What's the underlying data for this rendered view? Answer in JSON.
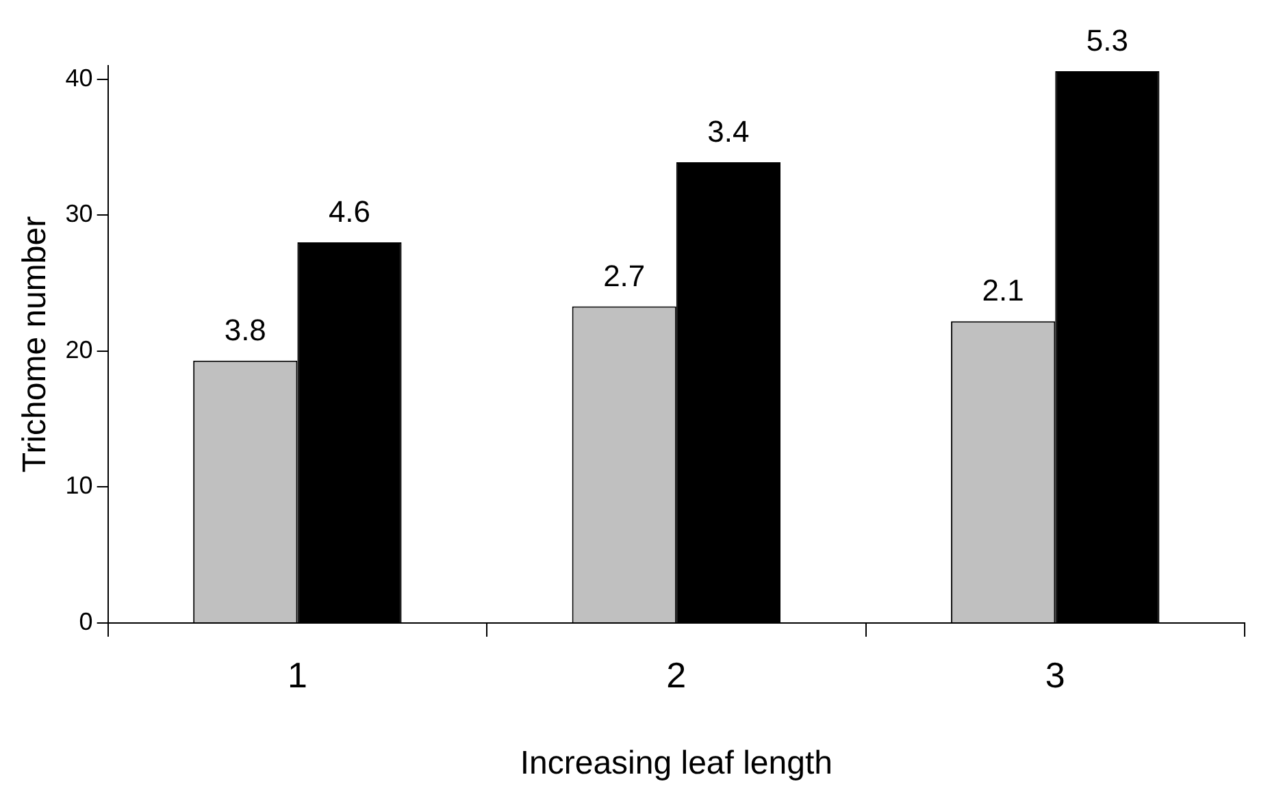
{
  "chart_data": {
    "type": "bar",
    "xlabel": "Increasing leaf length",
    "ylabel": "Trichome number",
    "categories": [
      "1",
      "2",
      "3"
    ],
    "series": [
      {
        "color": "#c0c0c0",
        "values": [
          19.3,
          23.3,
          22.2
        ]
      },
      {
        "color": "#000000",
        "values": [
          28.0,
          33.9,
          40.6
        ]
      }
    ],
    "annotations": [
      {
        "text": "3.8",
        "x": "1",
        "y": 19.3
      },
      {
        "text": "4.6",
        "x": "1",
        "y": 28.0
      },
      {
        "text": "2.7",
        "x": "2",
        "y": 23.3
      },
      {
        "text": "3.4",
        "x": "2",
        "y": 33.9
      },
      {
        "text": "2.1",
        "x": "3",
        "y": 22.2
      },
      {
        "text": "5.3",
        "x": "3",
        "y": 40.6
      }
    ],
    "ylim": [
      0,
      41
    ],
    "yticks": [
      0,
      10,
      20,
      30,
      40
    ],
    "grid": false,
    "legend": false
  }
}
